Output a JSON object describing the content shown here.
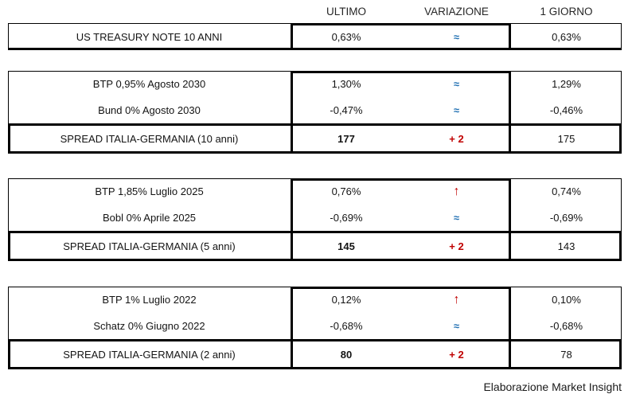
{
  "columns": {
    "ultimo": "ULTIMO",
    "variazione": "VARIAZIONE",
    "giorno": "1 GIORNO"
  },
  "blocks": [
    {
      "rows": [
        {
          "label": "US TREASURY NOTE 10 ANNI",
          "ultimo": "0,63%",
          "symbol": "≈",
          "trend": "flat",
          "giorno": "0,63%"
        }
      ]
    },
    {
      "rows": [
        {
          "label": "BTP 0,95% Agosto 2030",
          "ultimo": "1,30%",
          "symbol": "≈",
          "trend": "flat",
          "giorno": "1,29%"
        },
        {
          "label": "Bund 0% Agosto 2030",
          "ultimo": "-0,47%",
          "symbol": "≈",
          "trend": "flat",
          "giorno": "-0,46%"
        }
      ],
      "spread": {
        "label": "SPREAD ITALIA-GERMANIA (10 anni)",
        "ultimo": "177",
        "variazione": "+ 2",
        "giorno": "175"
      }
    },
    {
      "rows": [
        {
          "label": "BTP 1,85% Luglio 2025",
          "ultimo": "0,76%",
          "symbol": "↑",
          "trend": "up",
          "giorno": "0,74%"
        },
        {
          "label": "Bobl 0% Aprile 2025",
          "ultimo": "-0,69%",
          "symbol": "≈",
          "trend": "flat",
          "giorno": "-0,69%"
        }
      ],
      "spread": {
        "label": "SPREAD ITALIA-GERMANIA (5 anni)",
        "ultimo": "145",
        "variazione": "+ 2",
        "giorno": "143"
      }
    },
    {
      "rows": [
        {
          "label": "BTP 1% Luglio 2022",
          "ultimo": "0,12%",
          "symbol": "↑",
          "trend": "up",
          "giorno": "0,10%"
        },
        {
          "label": "Schatz 0% Giugno 2022",
          "ultimo": "-0,68%",
          "symbol": "≈",
          "trend": "flat",
          "giorno": "-0,68%"
        }
      ],
      "spread": {
        "label": "SPREAD ITALIA-GERMANIA (2 anni)",
        "ultimo": "80",
        "variazione": "+ 2",
        "giorno": "78"
      }
    }
  ],
  "footer": {
    "credit": "Elaborazione Market Insight"
  },
  "colors": {
    "trend_blue": "#2271B3",
    "trend_red": "#C00000",
    "border": "#000000"
  },
  "chart_data": {
    "type": "table",
    "columns": [
      "",
      "ULTIMO",
      "VARIAZIONE",
      "1 GIORNO"
    ],
    "rows": [
      [
        "US TREASURY NOTE 10 ANNI",
        "0,63%",
        "≈",
        "0,63%"
      ],
      [
        "BTP 0,95% Agosto 2030",
        "1,30%",
        "≈",
        "1,29%"
      ],
      [
        "Bund 0% Agosto 2030",
        "-0,47%",
        "≈",
        "-0,46%"
      ],
      [
        "SPREAD ITALIA-GERMANIA (10 anni)",
        "177",
        "+2",
        "175"
      ],
      [
        "BTP 1,85% Luglio 2025",
        "0,76%",
        "↑",
        "0,74%"
      ],
      [
        "Bobl 0% Aprile 2025",
        "-0,69%",
        "≈",
        "-0,69%"
      ],
      [
        "SPREAD ITALIA-GERMANIA (5 anni)",
        "145",
        "+2",
        "143"
      ],
      [
        "BTP 1% Luglio 2022",
        "0,12%",
        "↑",
        "0,10%"
      ],
      [
        "Schatz 0% Giugno 2022",
        "-0,68%",
        "≈",
        "-0,68%"
      ],
      [
        "SPREAD ITALIA-GERMANIA (2 anni)",
        "80",
        "+2",
        "78"
      ]
    ],
    "notes": "Spread values in basis points; bold in ULTIMO column; VARIAZIONE symbols: ≈ flat (blue), ↑ up (red), +2 change (red)."
  }
}
